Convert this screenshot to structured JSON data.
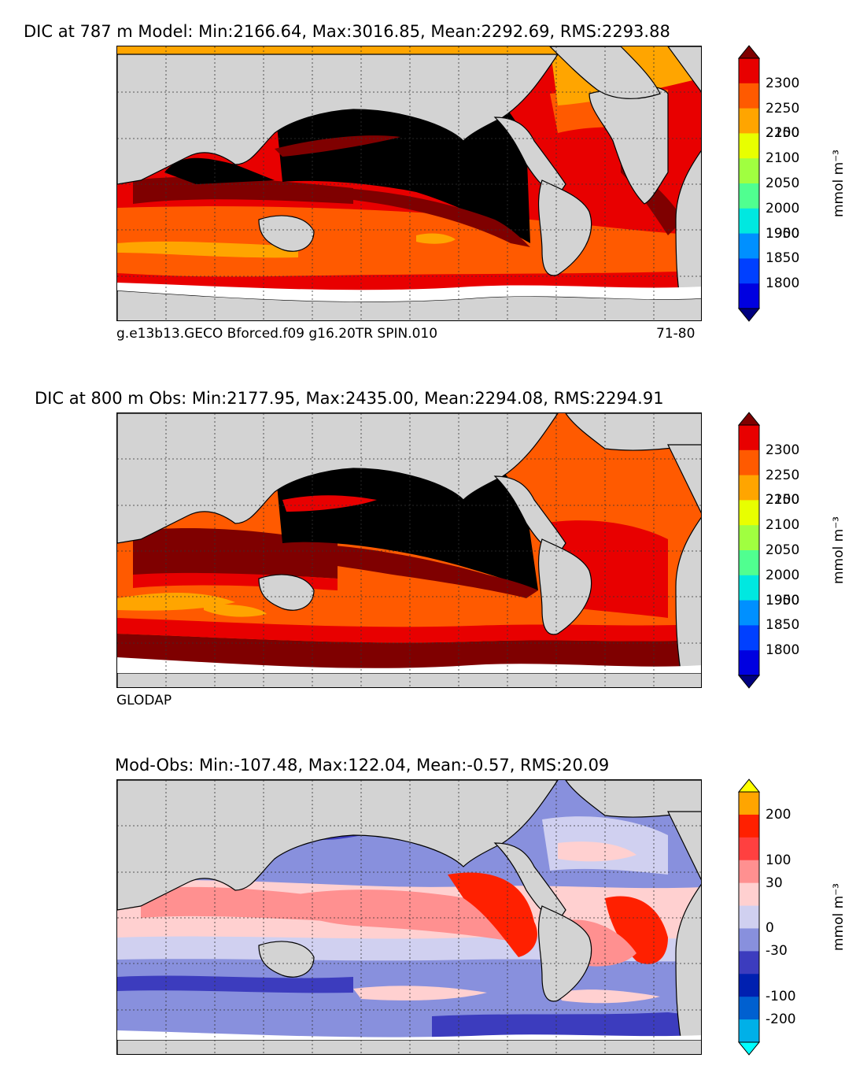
{
  "panels": [
    {
      "title": "DIC at 787 m Model: Min:2166.64, Max:3016.85, Mean:2292.69, RMS:2293.88",
      "caption_left": "g.e13b13.GECO Bforced.f09 g16.20TR SPIN.010",
      "caption_right": "71-80",
      "colorbar": {
        "ticks": [
          "2300",
          "2250",
          "2200",
          "2150",
          "2100",
          "2050",
          "2000",
          "1950",
          "1900",
          "1850",
          "1800"
        ],
        "colors": [
          "#7f0000",
          "#e80000",
          "#ff5a00",
          "#ffa500",
          "#e8ff00",
          "#a0ff40",
          "#50ff90",
          "#00e8e0",
          "#0090ff",
          "#0040ff",
          "#0000e0",
          "#000080"
        ],
        "unit": "mmol m⁻³"
      }
    },
    {
      "title": "DIC at 800 m Obs: Min:2177.95, Max:2435.00, Mean:2294.08, RMS:2294.91",
      "caption_left": "GLODAP",
      "caption_right": "",
      "colorbar": {
        "ticks": [
          "2300",
          "2250",
          "2200",
          "2150",
          "2100",
          "2050",
          "2000",
          "1950",
          "1900",
          "1850",
          "1800"
        ],
        "colors": [
          "#7f0000",
          "#e80000",
          "#ff5a00",
          "#ffa500",
          "#e8ff00",
          "#a0ff40",
          "#50ff90",
          "#00e8e0",
          "#0090ff",
          "#0040ff",
          "#0000e0",
          "#000080"
        ],
        "unit": "mmol m⁻³"
      }
    },
    {
      "title": "Mod-Obs: Min:-107.48, Max:122.04, Mean:-0.57, RMS:20.09",
      "caption_left": "",
      "caption_right": "",
      "colorbar": {
        "ticks": [
          "200",
          "100",
          "30",
          "0",
          "-30",
          "-100",
          "-200"
        ],
        "colors": [
          "#ffff00",
          "#ffa500",
          "#ff2000",
          "#ff4040",
          "#ff9090",
          "#ffd0d0",
          "#d0d0f0",
          "#8890dd",
          "#3c3cbe",
          "#0020b0",
          "#0060d0",
          "#00b0e8",
          "#00ffff"
        ],
        "unit": "mmol m⁻³"
      }
    }
  ]
}
